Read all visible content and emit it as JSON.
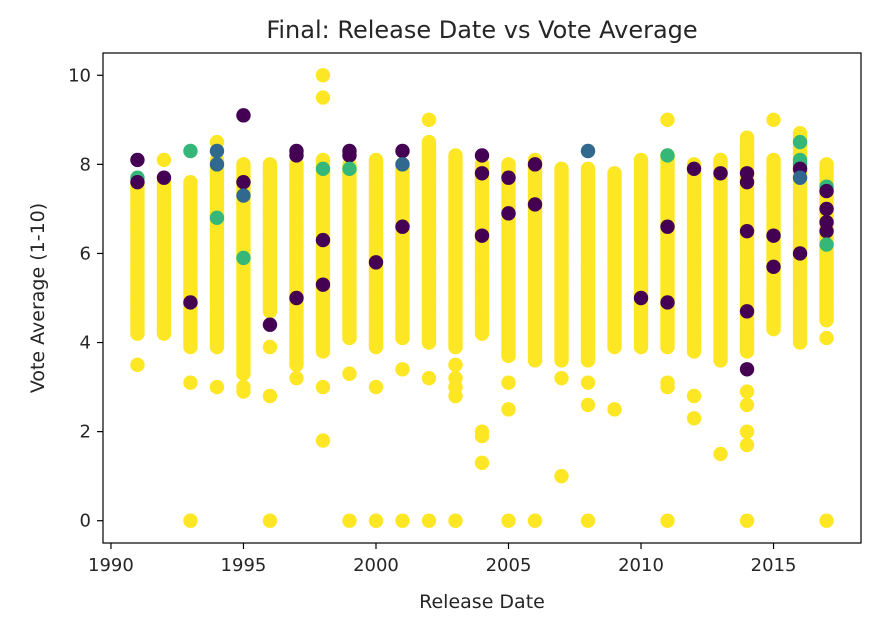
{
  "chart_data": {
    "type": "scatter",
    "title": "Final: Release Date vs Vote Average",
    "xlabel": "Release Date",
    "ylabel": "Vote Average (1-10)",
    "xlim": [
      1989.7,
      2018.3
    ],
    "ylim": [
      -0.5,
      10.5
    ],
    "xticks": [
      1990,
      1995,
      2000,
      2005,
      2010,
      2015
    ],
    "yticks": [
      0,
      2,
      4,
      6,
      8,
      10
    ],
    "grid": false,
    "colormap": "viridis",
    "palette": {
      "dark_purple": "#440154",
      "blue": "#31688e",
      "green": "#35b779",
      "yellow": "#fde725"
    },
    "yellow_ranges": [
      {
        "x": 1991,
        "ymin": 4.2,
        "ymax": 7.6,
        "low_points": [
          3.5
        ]
      },
      {
        "x": 1992,
        "ymin": 4.2,
        "ymax": 7.6,
        "low_points": [
          8.1
        ]
      },
      {
        "x": 1993,
        "ymin": 3.9,
        "ymax": 7.6,
        "low_points": [
          3.1,
          0.0
        ]
      },
      {
        "x": 1994,
        "ymin": 3.9,
        "ymax": 8.1,
        "low_points": [
          3.0,
          8.5
        ]
      },
      {
        "x": 1995,
        "ymin": 3.3,
        "ymax": 8.0,
        "low_points": [
          3.0,
          2.9
        ]
      },
      {
        "x": 1996,
        "ymin": 4.7,
        "ymax": 8.0,
        "low_points": [
          3.9,
          2.8,
          0.0
        ]
      },
      {
        "x": 1997,
        "ymin": 3.5,
        "ymax": 8.0,
        "low_points": [
          3.2
        ]
      },
      {
        "x": 1998,
        "ymin": 3.8,
        "ymax": 8.1,
        "low_points": [
          3.0,
          1.8,
          9.5,
          10.0
        ]
      },
      {
        "x": 1999,
        "ymin": 4.1,
        "ymax": 8.0,
        "low_points": [
          3.3,
          0.0
        ]
      },
      {
        "x": 2000,
        "ymin": 3.9,
        "ymax": 8.1,
        "low_points": [
          3.0,
          0.0
        ]
      },
      {
        "x": 2001,
        "ymin": 4.1,
        "ymax": 8.0,
        "low_points": [
          3.4,
          0.0
        ]
      },
      {
        "x": 2002,
        "ymin": 4.0,
        "ymax": 8.5,
        "low_points": [
          3.2,
          9.0,
          0.0
        ]
      },
      {
        "x": 2003,
        "ymin": 3.9,
        "ymax": 8.2,
        "low_points": [
          3.5,
          3.2,
          3.0,
          2.8,
          0.0
        ]
      },
      {
        "x": 2004,
        "ymin": 4.2,
        "ymax": 8.0,
        "low_points": [
          2.0,
          1.9,
          1.3
        ]
      },
      {
        "x": 2005,
        "ymin": 3.7,
        "ymax": 8.0,
        "low_points": [
          3.1,
          2.5,
          0.0
        ]
      },
      {
        "x": 2006,
        "ymin": 3.6,
        "ymax": 8.1,
        "low_points": [
          0.0
        ]
      },
      {
        "x": 2007,
        "ymin": 3.6,
        "ymax": 7.9,
        "low_points": [
          3.2,
          1.0
        ]
      },
      {
        "x": 2008,
        "ymin": 3.6,
        "ymax": 7.9,
        "low_points": [
          3.1,
          2.6,
          0.0
        ]
      },
      {
        "x": 2009,
        "ymin": 3.9,
        "ymax": 7.8,
        "low_points": [
          2.5
        ]
      },
      {
        "x": 2010,
        "ymin": 3.9,
        "ymax": 8.1,
        "low_points": []
      },
      {
        "x": 2011,
        "ymin": 3.9,
        "ymax": 8.2,
        "low_points": [
          3.1,
          3.0,
          9.0,
          0.0
        ]
      },
      {
        "x": 2012,
        "ymin": 3.8,
        "ymax": 8.0,
        "low_points": [
          2.8,
          2.3
        ]
      },
      {
        "x": 2013,
        "ymin": 3.6,
        "ymax": 8.1,
        "low_points": [
          1.5
        ]
      },
      {
        "x": 2014,
        "ymin": 3.8,
        "ymax": 8.6,
        "low_points": [
          2.9,
          2.6,
          2.0,
          1.7,
          0.0
        ]
      },
      {
        "x": 2015,
        "ymin": 4.3,
        "ymax": 8.1,
        "low_points": [
          9.0
        ]
      },
      {
        "x": 2016,
        "ymin": 4.0,
        "ymax": 8.7,
        "low_points": []
      },
      {
        "x": 2017,
        "ymin": 4.5,
        "ymax": 8.0,
        "low_points": [
          4.1,
          0.0
        ]
      }
    ],
    "highlight_points": [
      {
        "x": 1991,
        "y": 8.1,
        "c": "dark_purple"
      },
      {
        "x": 1991,
        "y": 7.7,
        "c": "green"
      },
      {
        "x": 1991,
        "y": 7.6,
        "c": "dark_purple"
      },
      {
        "x": 1992,
        "y": 7.7,
        "c": "dark_purple"
      },
      {
        "x": 1993,
        "y": 8.3,
        "c": "green"
      },
      {
        "x": 1993,
        "y": 4.9,
        "c": "dark_purple"
      },
      {
        "x": 1994,
        "y": 8.3,
        "c": "blue"
      },
      {
        "x": 1994,
        "y": 8.0,
        "c": "blue"
      },
      {
        "x": 1994,
        "y": 6.8,
        "c": "green"
      },
      {
        "x": 1995,
        "y": 9.1,
        "c": "dark_purple"
      },
      {
        "x": 1995,
        "y": 7.6,
        "c": "dark_purple"
      },
      {
        "x": 1995,
        "y": 7.3,
        "c": "blue"
      },
      {
        "x": 1995,
        "y": 5.9,
        "c": "green"
      },
      {
        "x": 1996,
        "y": 4.4,
        "c": "dark_purple"
      },
      {
        "x": 1997,
        "y": 8.3,
        "c": "dark_purple"
      },
      {
        "x": 1997,
        "y": 8.2,
        "c": "dark_purple"
      },
      {
        "x": 1997,
        "y": 5.0,
        "c": "dark_purple"
      },
      {
        "x": 1998,
        "y": 7.9,
        "c": "green"
      },
      {
        "x": 1998,
        "y": 6.3,
        "c": "dark_purple"
      },
      {
        "x": 1998,
        "y": 5.3,
        "c": "dark_purple"
      },
      {
        "x": 1999,
        "y": 8.3,
        "c": "dark_purple"
      },
      {
        "x": 1999,
        "y": 8.2,
        "c": "dark_purple"
      },
      {
        "x": 1999,
        "y": 7.9,
        "c": "green"
      },
      {
        "x": 2000,
        "y": 5.8,
        "c": "dark_purple"
      },
      {
        "x": 2001,
        "y": 8.3,
        "c": "dark_purple"
      },
      {
        "x": 2001,
        "y": 8.0,
        "c": "blue"
      },
      {
        "x": 2001,
        "y": 6.6,
        "c": "dark_purple"
      },
      {
        "x": 2004,
        "y": 8.2,
        "c": "dark_purple"
      },
      {
        "x": 2004,
        "y": 7.8,
        "c": "dark_purple"
      },
      {
        "x": 2004,
        "y": 6.4,
        "c": "dark_purple"
      },
      {
        "x": 2005,
        "y": 7.7,
        "c": "dark_purple"
      },
      {
        "x": 2005,
        "y": 6.9,
        "c": "dark_purple"
      },
      {
        "x": 2006,
        "y": 8.0,
        "c": "dark_purple"
      },
      {
        "x": 2006,
        "y": 7.1,
        "c": "dark_purple"
      },
      {
        "x": 2008,
        "y": 8.3,
        "c": "blue"
      },
      {
        "x": 2010,
        "y": 5.0,
        "c": "dark_purple"
      },
      {
        "x": 2011,
        "y": 8.2,
        "c": "green"
      },
      {
        "x": 2011,
        "y": 6.6,
        "c": "dark_purple"
      },
      {
        "x": 2011,
        "y": 4.9,
        "c": "dark_purple"
      },
      {
        "x": 2012,
        "y": 7.9,
        "c": "dark_purple"
      },
      {
        "x": 2013,
        "y": 7.8,
        "c": "dark_purple"
      },
      {
        "x": 2014,
        "y": 7.8,
        "c": "dark_purple"
      },
      {
        "x": 2014,
        "y": 7.6,
        "c": "dark_purple"
      },
      {
        "x": 2014,
        "y": 6.5,
        "c": "dark_purple"
      },
      {
        "x": 2014,
        "y": 4.7,
        "c": "dark_purple"
      },
      {
        "x": 2014,
        "y": 3.4,
        "c": "dark_purple"
      },
      {
        "x": 2015,
        "y": 6.4,
        "c": "dark_purple"
      },
      {
        "x": 2015,
        "y": 5.7,
        "c": "dark_purple"
      },
      {
        "x": 2016,
        "y": 8.5,
        "c": "green"
      },
      {
        "x": 2016,
        "y": 8.1,
        "c": "green"
      },
      {
        "x": 2016,
        "y": 8.0,
        "c": "green"
      },
      {
        "x": 2016,
        "y": 7.9,
        "c": "dark_purple"
      },
      {
        "x": 2016,
        "y": 7.7,
        "c": "blue"
      },
      {
        "x": 2016,
        "y": 6.0,
        "c": "dark_purple"
      },
      {
        "x": 2017,
        "y": 7.5,
        "c": "green"
      },
      {
        "x": 2017,
        "y": 7.4,
        "c": "dark_purple"
      },
      {
        "x": 2017,
        "y": 7.0,
        "c": "dark_purple"
      },
      {
        "x": 2017,
        "y": 6.7,
        "c": "dark_purple"
      },
      {
        "x": 2017,
        "y": 6.5,
        "c": "dark_purple"
      },
      {
        "x": 2017,
        "y": 6.2,
        "c": "green"
      }
    ]
  }
}
